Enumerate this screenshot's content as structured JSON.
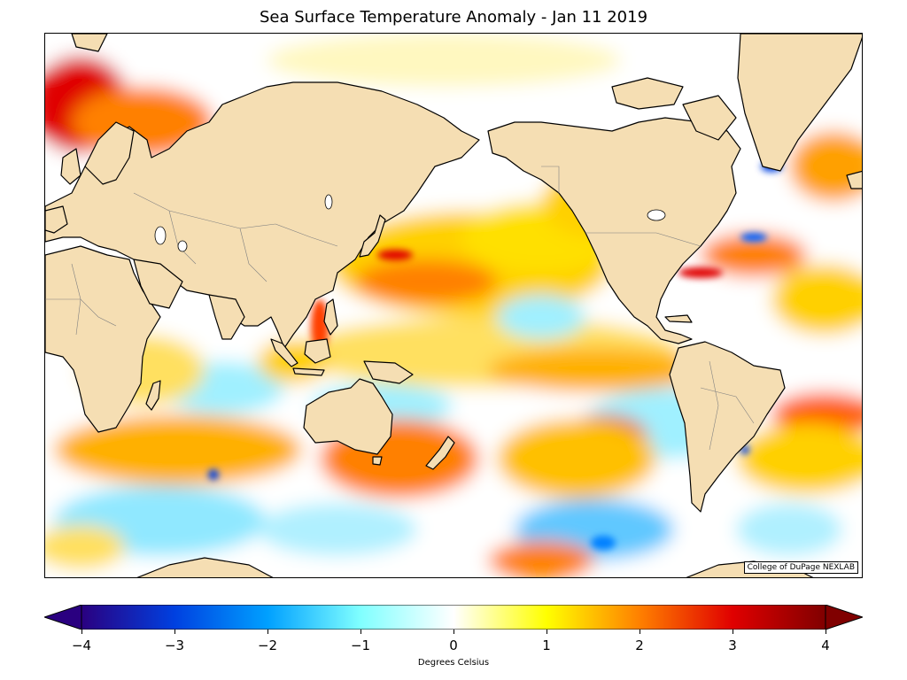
{
  "title": "Sea Surface Temperature Anomaly - Jan 11 2019",
  "credit": "College of DuPage NEXLAB",
  "colorbar": {
    "label": "Degrees Celsius",
    "ticks": [
      "−4",
      "−3",
      "−2",
      "−1",
      "0",
      "1",
      "2",
      "3",
      "4"
    ],
    "tick_values": [
      -4,
      -3,
      -2,
      -1,
      0,
      1,
      2,
      3,
      4
    ],
    "range": [
      -4,
      4
    ],
    "extend": "both",
    "colors": [
      "#2a0080",
      "#0040e0",
      "#00a0ff",
      "#80ffff",
      "#ffffff",
      "#ffff00",
      "#ff8000",
      "#e00000",
      "#800000"
    ]
  },
  "colors": {
    "land": "#f5deb3",
    "coastline": "#000000",
    "border": "#808080",
    "ocean_neutral": "#ffffff"
  },
  "chart_data": {
    "type": "heatmap",
    "title": "Sea Surface Temperature Anomaly - Jan 11 2019",
    "value_range": [
      -4,
      4
    ],
    "colorbar_label": "Degrees Celsius",
    "colorbar_ticks": [
      -4,
      -3,
      -2,
      -1,
      0,
      1,
      2,
      3,
      4
    ],
    "projection": "Pacific-centered world map"
  }
}
